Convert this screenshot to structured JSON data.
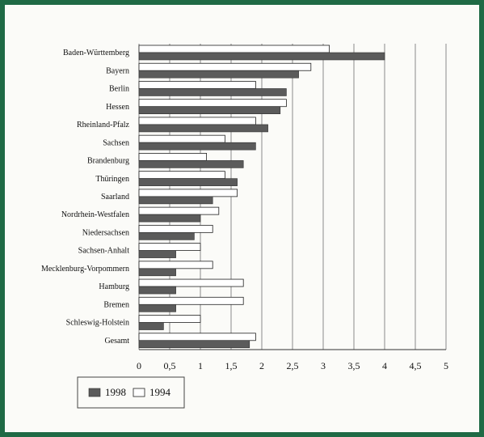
{
  "chart_data": {
    "type": "bar",
    "orientation": "horizontal",
    "categories": [
      "Baden-Württemberg",
      "Bayern",
      "Berlin",
      "Hessen",
      "Rheinland-Pfalz",
      "Sachsen",
      "Brandenburg",
      "Thüringen",
      "Saarland",
      "Nordrhein-Westfalen",
      "Niedersachsen",
      "Sachsen-Anhalt",
      "Mecklenburg-Vorpommern",
      "Hamburg",
      "Bremen",
      "Schleswig-Holstein",
      "Gesamt"
    ],
    "series": [
      {
        "name": "1998",
        "values": [
          4.0,
          2.6,
          2.4,
          2.3,
          2.1,
          1.9,
          1.7,
          1.6,
          1.2,
          1.0,
          0.9,
          0.6,
          0.6,
          0.6,
          0.6,
          0.4,
          1.8
        ],
        "color": "#5b5b5b"
      },
      {
        "name": "1994",
        "values": [
          3.1,
          2.8,
          1.9,
          2.4,
          1.9,
          1.4,
          1.1,
          1.4,
          1.6,
          1.3,
          1.2,
          1.0,
          1.2,
          1.7,
          1.7,
          1.0,
          1.9
        ],
        "color": "#ffffff"
      }
    ],
    "xlim": [
      0,
      5
    ],
    "xticks": [
      0,
      0.5,
      1,
      1.5,
      2,
      2.5,
      3,
      3.5,
      4,
      4.5,
      5
    ],
    "xtick_labels": [
      "0",
      "0,5",
      "1",
      "1,5",
      "2",
      "2,5",
      "3",
      "3,5",
      "4",
      "4,5",
      "5"
    ],
    "grid": true,
    "legend": {
      "placement": "bottom-left",
      "entries": [
        "1998",
        "1994"
      ]
    }
  },
  "colors": {
    "frame": "#1f6a45",
    "bar_1998": "#5b5b5b",
    "bar_1994": "#ffffff"
  }
}
